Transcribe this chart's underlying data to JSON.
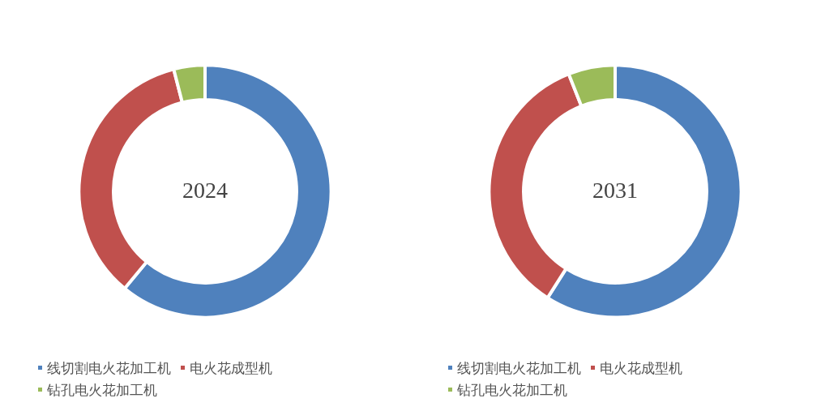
{
  "chart_data": [
    {
      "type": "donut",
      "title": "2024",
      "categories": [
        "线切割电火花加工机",
        "电火花成型机",
        "钻孔电火花加工机"
      ],
      "values": [
        61,
        35,
        4
      ],
      "colors": [
        "#4f81bd",
        "#c0504d",
        "#9bbb59"
      ],
      "legend": "bottom"
    },
    {
      "type": "donut",
      "title": "2031",
      "categories": [
        "线切割电火花加工机",
        "电火花成型机",
        "钻孔电火花加工机"
      ],
      "values": [
        59,
        35,
        6
      ],
      "colors": [
        "#4f81bd",
        "#c0504d",
        "#9bbb59"
      ],
      "legend": "bottom"
    }
  ]
}
